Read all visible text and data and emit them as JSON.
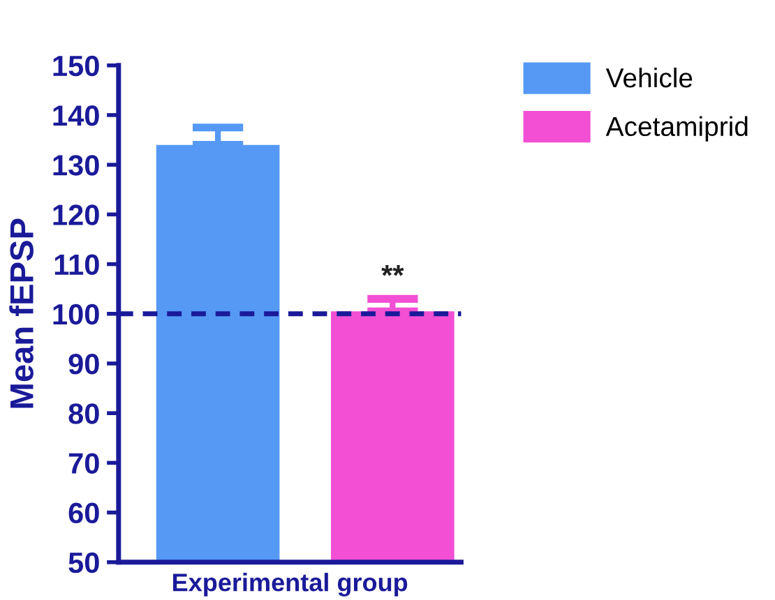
{
  "chart_data": {
    "type": "bar",
    "categories": [
      null
    ],
    "xlabel": "Experimental group",
    "ylabel": "Mean fEPSP",
    "series": [
      {
        "name": "Vehicle",
        "color": "#5599f5",
        "values": [
          134
        ],
        "errors": [
          [
            134,
            137.5
          ]
        ]
      },
      {
        "name": "Acetamiprid",
        "color": "#f24fd4",
        "values": [
          100.5
        ],
        "errors": [
          [
            100.5,
            103
          ]
        ]
      }
    ],
    "ylim": [
      50,
      150
    ],
    "yticks": [
      50,
      60,
      70,
      80,
      90,
      100,
      110,
      120,
      130,
      140,
      150
    ],
    "ref_lines": [
      {
        "axis": "y",
        "value": 100,
        "color": "#1a1a99",
        "line_style": "dashed"
      }
    ],
    "annotations": [
      "**"
    ],
    "grid": false,
    "legend": "top right"
  }
}
